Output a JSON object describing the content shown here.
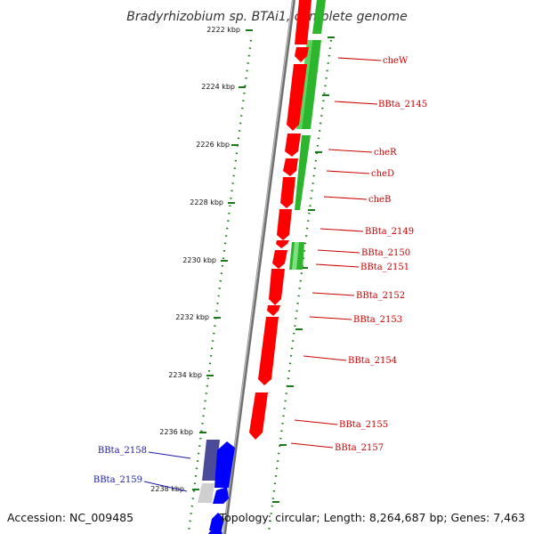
{
  "title": "Bradyrhizobium sp. BTAi1, complete genome",
  "footer": {
    "accession": "Accession: NC_009485",
    "summary": "Topology: circular; Length: 8,264,687 bp; Genes: 7,463"
  },
  "scale": {
    "unit": "kbp",
    "ticks": [
      "2222 kbp",
      "2224 kbp",
      "2226 kbp",
      "2228 kbp",
      "2230 kbp",
      "2232 kbp",
      "2234 kbp",
      "2236 kbp",
      "2238 kbp"
    ]
  },
  "colors": {
    "forward_strand": "#ff0000",
    "reverse_strand": "#2db52d",
    "other_strand": "#0000ff",
    "other_strand_muted": "#4b4b99",
    "tick": "#1a7a1a",
    "backbone": "#888888",
    "right_labels": "#cc0000",
    "left_labels": "#1a1aa8"
  },
  "gene_labels_right": [
    "cheW",
    "BBta_2145",
    "cheR",
    "cheD",
    "cheB",
    "BBta_2149",
    "BBta_2150",
    "BBta_2151",
    "BBta_2152",
    "BBta_2153",
    "BBta_2154",
    "BBta_2155",
    "BBta_2157"
  ],
  "gene_labels_left": [
    "BBta_2158",
    "BBta_2159"
  ]
}
